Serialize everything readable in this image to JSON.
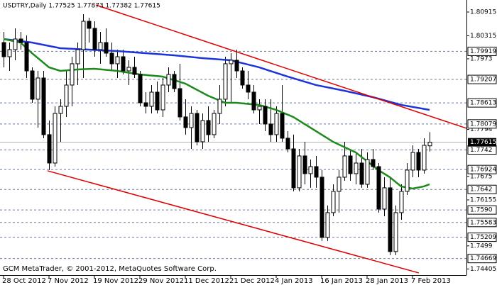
{
  "chart_data": {
    "type": "candlestick",
    "title": "USDTRY,Daily  1.77525 1.77873 1.77382 1.77615",
    "footer": "GCM MetaTrader, © 2001-2012, MetaQuotes Software Corp.",
    "categories": [
      "28 Oct 2012",
      null,
      null,
      null,
      null,
      null,
      null,
      null,
      "7 Nov 2012",
      null,
      null,
      null,
      null,
      null,
      null,
      null,
      "19 Nov 2012",
      null,
      null,
      null,
      null,
      null,
      null,
      null,
      "29 Nov 2012",
      null,
      null,
      null,
      null,
      null,
      null,
      null,
      "11 Dec 2012",
      null,
      null,
      null,
      null,
      null,
      null,
      null,
      "21 Dec 2012",
      null,
      null,
      null,
      null,
      null,
      null,
      null,
      "4 Jan 2013",
      null,
      null,
      null,
      null,
      null,
      null,
      null,
      "16 Jan 2013",
      null,
      null,
      null,
      null,
      null,
      null,
      null,
      "28 Jan 2013",
      null,
      null,
      null,
      null,
      null,
      null,
      null,
      "7 Feb 2013",
      null,
      null,
      null
    ],
    "open": [
      1.80142,
      1.79783,
      1.79963,
      1.80232,
      1.80142,
      1.79424,
      1.78706,
      1.79244,
      1.77808,
      1.77089,
      1.78346,
      1.78526,
      1.79065,
      1.79604,
      1.79963,
      1.80681,
      1.80502,
      1.79963,
      1.80142,
      1.79873,
      1.79604,
      1.79783,
      1.79424,
      1.79514,
      1.79334,
      1.78616,
      1.78526,
      1.78885,
      1.78436,
      1.79065,
      1.79334,
      1.78975,
      1.78257,
      1.77987,
      1.78346,
      1.77628,
      1.78167,
      1.77808,
      1.78346,
      1.78706,
      1.79604,
      1.79694,
      1.79424,
      1.79065,
      1.78885,
      1.78436,
      1.78526,
      1.78077,
      1.77808,
      1.78346,
      1.77718,
      1.77448,
      1.76461,
      1.77269,
      1.7682,
      1.76999,
      1.7673,
      1.75204,
      1.75832,
      1.76371,
      1.7673,
      1.77269,
      1.7682,
      1.77089,
      1.7655,
      1.77179,
      1.76999,
      1.75922,
      1.76461,
      1.74846,
      1.75832,
      1.76371,
      1.7691,
      1.77359,
      1.7691,
      1.77525
    ],
    "high": [
      1.80412,
      1.80142,
      1.80502,
      1.80412,
      1.80322,
      1.79514,
      1.79424,
      1.79424,
      1.78167,
      1.78526,
      1.78706,
      1.79424,
      1.79783,
      1.80142,
      1.80861,
      1.80771,
      1.80681,
      1.80412,
      1.80502,
      1.80142,
      1.79963,
      1.79963,
      1.79694,
      1.79783,
      1.79424,
      1.78885,
      1.79065,
      1.79155,
      1.79244,
      1.79514,
      1.79424,
      1.79604,
      1.78706,
      1.78526,
      1.78436,
      1.78346,
      1.78526,
      1.78436,
      1.79065,
      1.79783,
      1.79873,
      1.79963,
      1.79514,
      1.79424,
      1.79065,
      1.78706,
      1.78706,
      1.78706,
      1.78526,
      1.79065,
      1.77897,
      1.77808,
      1.77448,
      1.77628,
      1.77179,
      1.77269,
      1.7691,
      1.76012,
      1.7655,
      1.7691,
      1.77628,
      1.77448,
      1.77359,
      1.77448,
      1.77359,
      1.77448,
      1.77089,
      1.7673,
      1.7673,
      1.76012,
      1.7655,
      1.77089,
      1.77538,
      1.77448,
      1.77718,
      1.77873
    ],
    "low": [
      1.79514,
      1.79424,
      1.79694,
      1.79963,
      1.79244,
      1.78616,
      1.77987,
      1.77718,
      1.7691,
      1.76999,
      1.77628,
      1.78257,
      1.78526,
      1.79065,
      1.79244,
      1.80142,
      1.79783,
      1.79604,
      1.79783,
      1.79424,
      1.79244,
      1.79334,
      1.79065,
      1.79244,
      1.78526,
      1.78346,
      1.78346,
      1.78346,
      1.78257,
      1.78885,
      1.78885,
      1.78167,
      1.77808,
      1.77448,
      1.77538,
      1.77448,
      1.77628,
      1.77718,
      1.78077,
      1.78526,
      1.78616,
      1.79244,
      1.78975,
      1.78706,
      1.78346,
      1.78077,
      1.77897,
      1.77628,
      1.77628,
      1.77628,
      1.77359,
      1.76371,
      1.76371,
      1.7655,
      1.76461,
      1.76461,
      1.75114,
      1.75114,
      1.75742,
      1.75832,
      1.7664,
      1.7664,
      1.7655,
      1.76461,
      1.76461,
      1.7691,
      1.75832,
      1.75742,
      1.74756,
      1.74756,
      1.75652,
      1.76281,
      1.7673,
      1.7673,
      1.7682,
      1.77382
    ],
    "close": [
      1.79783,
      1.79963,
      1.80232,
      1.80142,
      1.79424,
      1.78706,
      1.79244,
      1.77808,
      1.77089,
      1.78346,
      1.78526,
      1.79065,
      1.79604,
      1.79963,
      1.80681,
      1.80502,
      1.79963,
      1.80142,
      1.79873,
      1.79604,
      1.79783,
      1.79424,
      1.79514,
      1.79334,
      1.78616,
      1.78526,
      1.78885,
      1.78436,
      1.79065,
      1.79334,
      1.78975,
      1.78257,
      1.77987,
      1.78346,
      1.77628,
      1.78167,
      1.77808,
      1.78346,
      1.78706,
      1.79604,
      1.79694,
      1.79424,
      1.79065,
      1.78885,
      1.78436,
      1.78526,
      1.78077,
      1.77808,
      1.78346,
      1.77718,
      1.77448,
      1.76461,
      1.77269,
      1.7682,
      1.76999,
      1.7673,
      1.75204,
      1.75832,
      1.76371,
      1.7673,
      1.77269,
      1.7682,
      1.77089,
      1.7655,
      1.77179,
      1.76999,
      1.75922,
      1.76461,
      1.74846,
      1.75832,
      1.76371,
      1.7691,
      1.77359,
      1.7691,
      1.77538,
      1.77615
    ],
    "lines": [
      {
        "color": "#1c34d8",
        "x": [
          0,
          5,
          10,
          15,
          20,
          25,
          30,
          35,
          40,
          45,
          50,
          55,
          60,
          65,
          70,
          75
        ],
        "values": [
          1.80232,
          1.80142,
          1.79999,
          1.79963,
          1.79927,
          1.79873,
          1.79819,
          1.79747,
          1.79694,
          1.79514,
          1.7928,
          1.79065,
          1.78921,
          1.78759,
          1.78562,
          1.78436
        ]
      },
      {
        "color": "#1e8a1e",
        "x": [
          0,
          3,
          5,
          8,
          10,
          13,
          16,
          20,
          24,
          28,
          32,
          36,
          39,
          41,
          45,
          48,
          51,
          55,
          58,
          62,
          66,
          68,
          70,
          72,
          74,
          75
        ],
        "values": [
          1.80232,
          1.80142,
          1.79873,
          1.79514,
          1.79424,
          1.7946,
          1.79478,
          1.79424,
          1.79334,
          1.7928,
          1.79101,
          1.78795,
          1.78616,
          1.78616,
          1.78562,
          1.78436,
          1.78257,
          1.77897,
          1.77628,
          1.77359,
          1.7691,
          1.7673,
          1.76496,
          1.76442,
          1.76496,
          1.7655
        ]
      }
    ],
    "trendlines": [
      {
        "color": "#e00000",
        "x": [
          16.25,
          81.5
        ],
        "values": [
          1.81094,
          1.77969
        ]
      },
      {
        "color": "#e00000",
        "x": [
          7.75,
          73.1
        ],
        "values": [
          1.76892,
          1.74305
        ]
      }
    ],
    "ylim": [
      1.7425,
      1.8122
    ],
    "yticks": [
      1.80915,
      1.80315,
      1.7973,
      1.7794,
      1.7675,
      1.76155,
      1.7499,
      1.74405
    ],
    "levels": [
      1.79919,
      1.79207,
      1.78613,
      1.78079,
      1.7742,
      1.76924,
      1.7642,
      {
        "value": 1.759,
        "label": "1.7590"
      },
      1.75583,
      1.75209,
      1.74669
    ],
    "current": 1.77615
  }
}
